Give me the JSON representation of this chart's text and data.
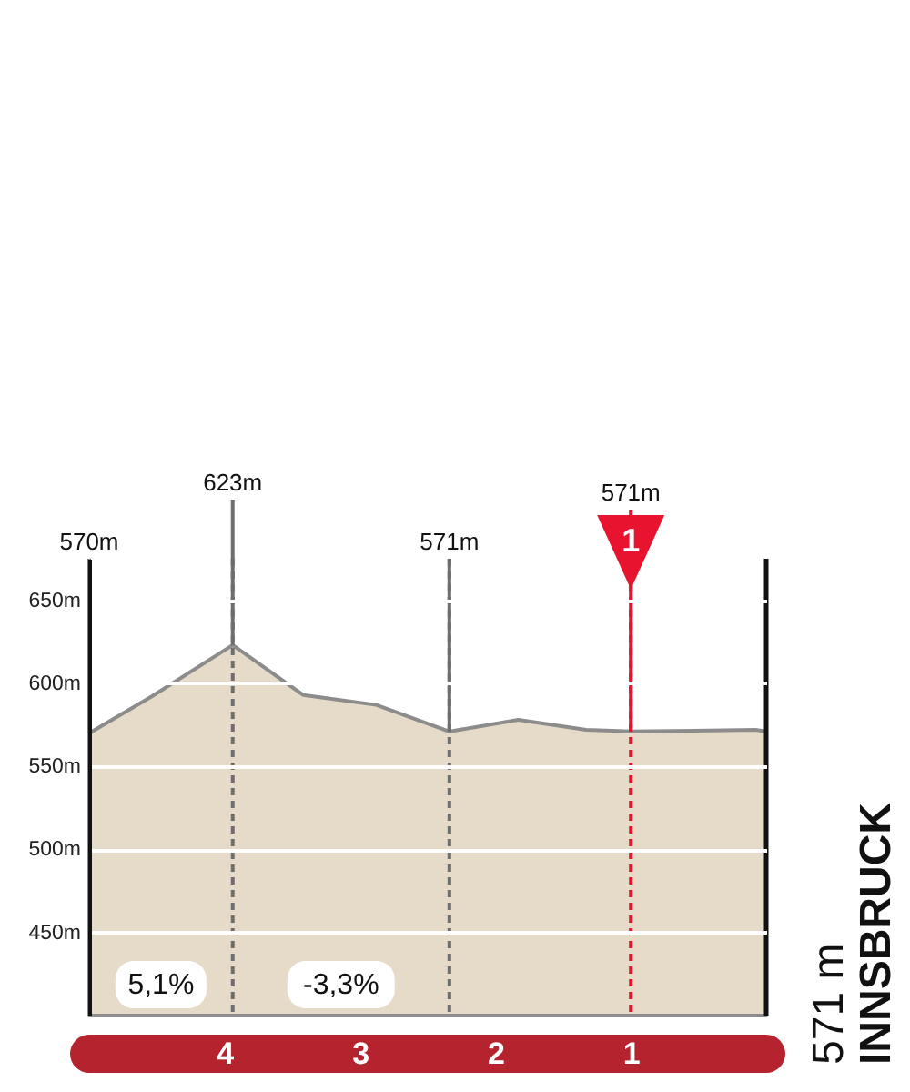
{
  "chart_data": {
    "type": "area",
    "x": [
      5.0,
      4.54,
      3.94,
      3.42,
      2.88,
      2.34,
      1.83,
      1.33,
      1.0,
      0.08,
      0.0
    ],
    "series": [
      {
        "color": "#e6dbc9",
        "values": [
          570,
          592,
          623,
          593,
          587,
          571,
          578,
          572,
          571,
          572,
          571
        ]
      }
    ],
    "xlim": [
      5,
      0
    ],
    "xticks": [
      4,
      3,
      2,
      1
    ],
    "ylim": [
      400,
      675
    ],
    "yticks": [
      {
        "value": 450,
        "label": "450m"
      },
      {
        "value": 500,
        "label": "500m"
      },
      {
        "value": 550,
        "label": "550m"
      },
      {
        "value": 600,
        "label": "600m"
      },
      {
        "value": 650,
        "label": "650m"
      }
    ],
    "grid": "y",
    "ref_lines": [
      {
        "axis": "x",
        "value": 3.94,
        "color": "#6e6e6e",
        "line_style": "dashed"
      },
      {
        "axis": "x",
        "value": 2.34,
        "color": "#6e6e6e",
        "line_style": "dashed"
      },
      {
        "axis": "x",
        "value": 1,
        "label": "1",
        "color": "#e8142f",
        "line_style": "dashed"
      },
      {
        "axis": "x",
        "value": 0,
        "color": "#111111"
      }
    ],
    "annotations": [
      {
        "text": "570m",
        "x": 5.0,
        "y": 570
      },
      {
        "text": "623m",
        "x": 3.94,
        "y": 623
      },
      {
        "text": "571m",
        "x": 2.34,
        "y": 571
      },
      {
        "text": "571m",
        "x": 1.0,
        "y": 571
      },
      "5,1%",
      "-3,3%",
      "571 m",
      "INNSBRUCK"
    ]
  }
}
